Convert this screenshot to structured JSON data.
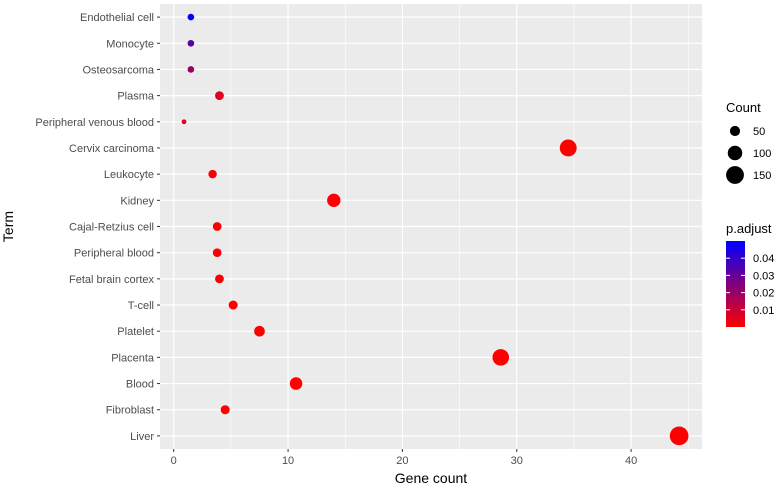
{
  "chart_data": {
    "type": "scatter",
    "xlabel": "Gene count",
    "ylabel": "Term",
    "xlim": [
      -1.2,
      46.2
    ],
    "x_ticks": [
      0,
      10,
      20,
      30,
      40
    ],
    "grid": true,
    "categories": [
      "Endothelial cell",
      "Monocyte",
      "Osteosarcoma",
      "Plasma",
      "Peripheral venous blood",
      "Cervix carcinoma",
      "Leukocyte",
      "Kidney",
      "Cajal-Retzius cell",
      "Peripheral blood",
      "Fetal brain cortex",
      "T-cell",
      "Platelet",
      "Placenta",
      "Blood",
      "Fibroblast",
      "Liver"
    ],
    "points": [
      {
        "term": "Endothelial cell",
        "x": 1.5,
        "count": 22,
        "p_adjust": 0.049
      },
      {
        "term": "Monocyte",
        "x": 1.5,
        "count": 22,
        "p_adjust": 0.032
      },
      {
        "term": "Osteosarcoma",
        "x": 1.5,
        "count": 22,
        "p_adjust": 0.02
      },
      {
        "term": "Plasma",
        "x": 4.0,
        "count": 38,
        "p_adjust": 0.006
      },
      {
        "term": "Peripheral venous blood",
        "x": 0.9,
        "count": 12,
        "p_adjust": 0.006
      },
      {
        "term": "Cervix carcinoma",
        "x": 34.5,
        "count": 135,
        "p_adjust": 0.0
      },
      {
        "term": "Leukocyte",
        "x": 3.4,
        "count": 35,
        "p_adjust": 0.002
      },
      {
        "term": "Kidney",
        "x": 14.0,
        "count": 85,
        "p_adjust": 0.0
      },
      {
        "term": "Cajal-Retzius cell",
        "x": 3.8,
        "count": 37,
        "p_adjust": 0.001
      },
      {
        "term": "Peripheral blood",
        "x": 3.8,
        "count": 37,
        "p_adjust": 0.001
      },
      {
        "term": "Fetal brain cortex",
        "x": 4.0,
        "count": 38,
        "p_adjust": 0.001
      },
      {
        "term": "T-cell",
        "x": 5.2,
        "count": 40,
        "p_adjust": 0.0
      },
      {
        "term": "Platelet",
        "x": 7.5,
        "count": 55,
        "p_adjust": 0.0
      },
      {
        "term": "Placenta",
        "x": 28.6,
        "count": 130,
        "p_adjust": 0.0
      },
      {
        "term": "Blood",
        "x": 10.7,
        "count": 75,
        "p_adjust": 0.0
      },
      {
        "term": "Fibroblast",
        "x": 4.5,
        "count": 40,
        "p_adjust": 0.0
      },
      {
        "term": "Liver",
        "x": 44.2,
        "count": 165,
        "p_adjust": 0.0
      }
    ],
    "legend_size": {
      "title": "Count",
      "entries": [
        {
          "label": "50",
          "value": 50
        },
        {
          "label": "100",
          "value": 100
        },
        {
          "label": "150",
          "value": 150
        }
      ]
    },
    "legend_color": {
      "title": "p.adjust",
      "range": [
        0.0,
        0.05
      ],
      "ticks": [
        {
          "label": "0.04",
          "value": 0.04
        },
        {
          "label": "0.03",
          "value": 0.03
        },
        {
          "label": "0.02",
          "value": 0.02
        },
        {
          "label": "0.01",
          "value": 0.01
        }
      ],
      "low_color": "#FF0000",
      "high_color": "#0000FF"
    },
    "legend_placement": "right",
    "panel_background": "#EBEBEB",
    "grid_color": "#FFFFFF"
  }
}
